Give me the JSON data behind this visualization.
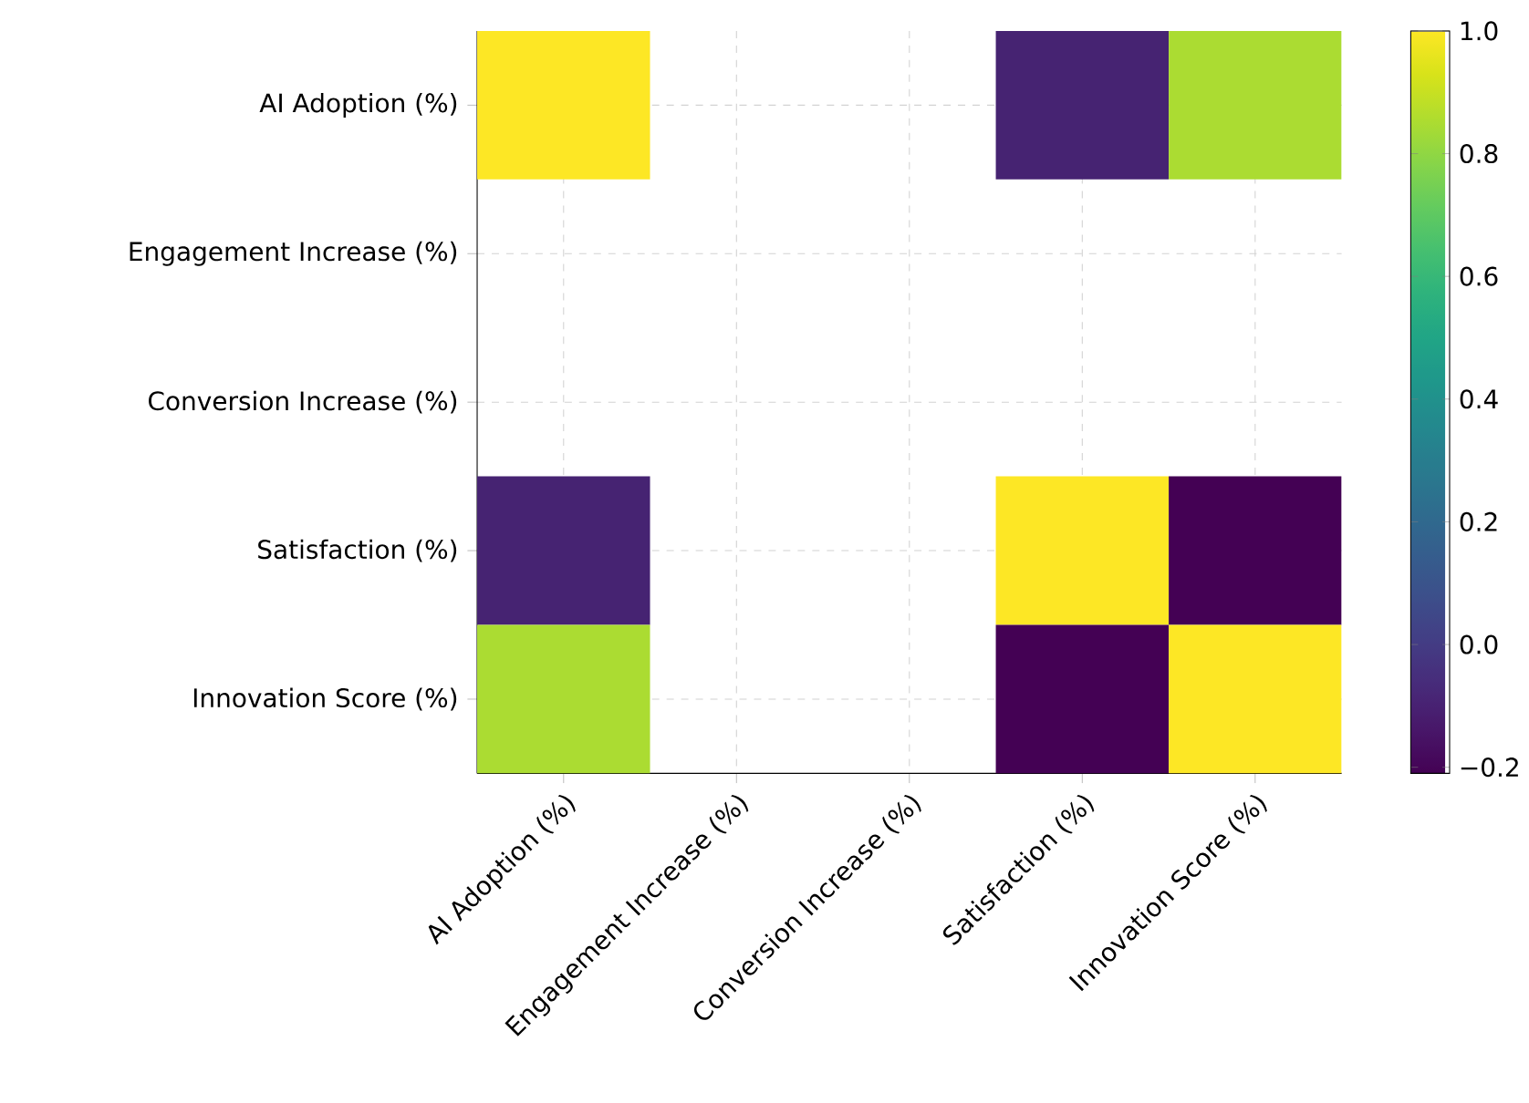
{
  "chart_data": {
    "type": "heatmap",
    "categories": [
      "AI Adoption (%)",
      "Engagement Increase (%)",
      "Conversion Increase (%)",
      "Satisfaction (%)",
      "Innovation Score (%)"
    ],
    "y_categories": [
      "AI Adoption (%)",
      "Engagement Increase (%)",
      "Conversion Increase (%)",
      "Satisfaction (%)",
      "Innovation Score (%)"
    ],
    "cells": [
      [
        1.0,
        null,
        null,
        -0.09,
        0.85
      ],
      [
        null,
        null,
        null,
        null,
        null
      ],
      [
        null,
        null,
        null,
        null,
        null
      ],
      [
        -0.09,
        null,
        null,
        1.0,
        -0.21
      ],
      [
        0.85,
        null,
        null,
        -0.21,
        1.0
      ]
    ],
    "clim": [
      -0.21,
      1.0
    ],
    "cticks": [
      {
        "value": -0.2,
        "label": "−0.2"
      },
      {
        "value": 0,
        "label": "0.0"
      },
      0.2,
      0.4,
      0.6,
      0.8,
      {
        "value": 1,
        "label": "1.0"
      }
    ],
    "grid": true
  }
}
